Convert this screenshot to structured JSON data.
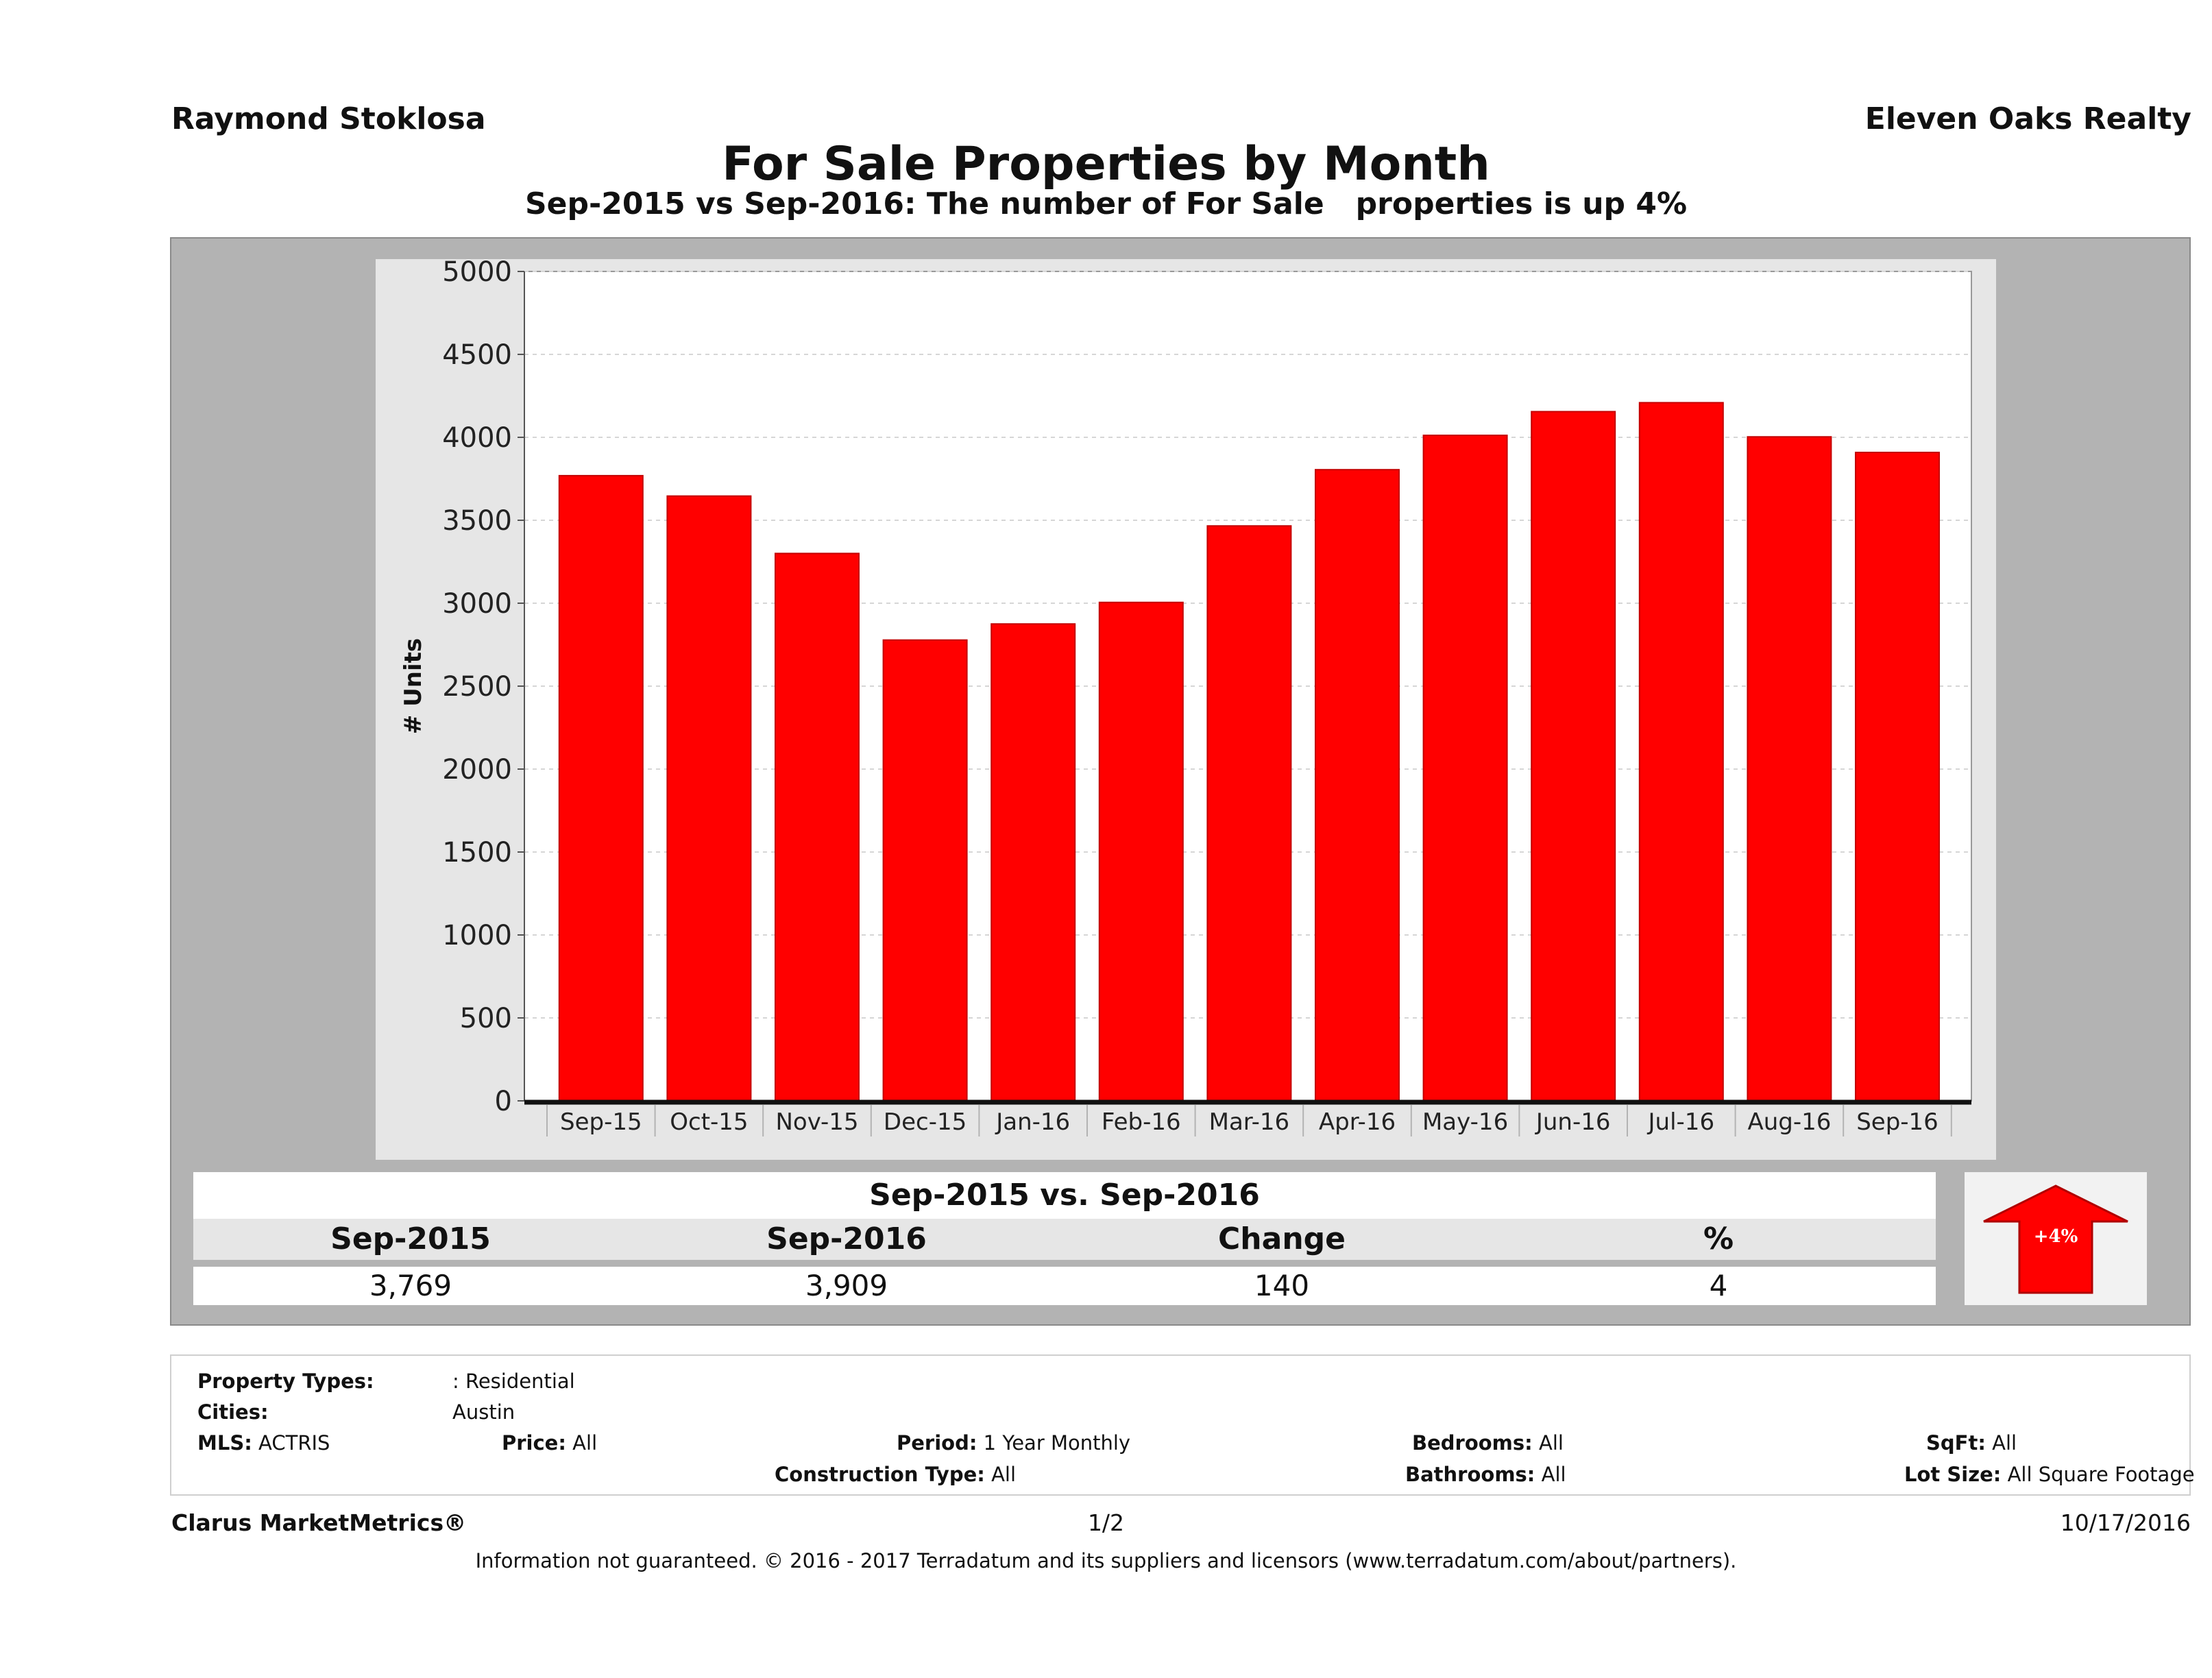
{
  "header": {
    "agent": "Raymond Stoklosa",
    "brokerage": "Eleven Oaks Realty",
    "title": "For Sale Properties by Month",
    "subtitle": "Sep-2015 vs Sep-2016: The number of For Sale   properties is up 4%"
  },
  "chart_data": {
    "type": "bar",
    "title": "For Sale Properties by Month",
    "xlabel": "",
    "ylabel": "# Units",
    "categories": [
      "Sep-15",
      "Oct-15",
      "Nov-15",
      "Dec-15",
      "Jan-16",
      "Feb-16",
      "Mar-16",
      "Apr-16",
      "May-16",
      "Jun-16",
      "Jul-16",
      "Aug-16",
      "Sep-16"
    ],
    "values": [
      3769,
      3646,
      3300,
      2778,
      2875,
      3005,
      3466,
      3805,
      4012,
      4155,
      4209,
      4003,
      3909
    ],
    "ylim": [
      0,
      5000
    ],
    "yticks": [
      0,
      500,
      1000,
      1500,
      2000,
      2500,
      3000,
      3500,
      4000,
      4500,
      5000
    ],
    "grid": true,
    "bar_color": "#ff0000",
    "bar_edge_color": "#c40000"
  },
  "summary": {
    "title": "Sep-2015 vs. Sep-2016",
    "headers": [
      "Sep-2015",
      "Sep-2016",
      "Change",
      "%"
    ],
    "values": [
      "3,769",
      "3,909",
      "140",
      "4"
    ],
    "indicator_label": "+4%",
    "indicator_direction": "up",
    "indicator_color": "#ff0000"
  },
  "filters": {
    "property_types_label": "Property Types:",
    "property_types_value": ": Residential",
    "cities_label": "Cities:",
    "cities_value": "Austin",
    "mls_label": "MLS:",
    "mls_value": "ACTRIS",
    "price_label": "Price:",
    "price_value": "All",
    "period_label": "Period:",
    "period_value": "1 Year Monthly",
    "bedrooms_label": "Bedrooms:",
    "bedrooms_value": "All",
    "sqft_label": "SqFt:",
    "sqft_value": "All",
    "construction_label": "Construction Type:",
    "construction_value": "All",
    "bathrooms_label": "Bathrooms:",
    "bathrooms_value": "All",
    "lot_label": "Lot Size:",
    "lot_value": "All Square Footage"
  },
  "footer": {
    "brand": "Clarus MarketMetrics®",
    "page": "1/2",
    "date": "10/17/2016",
    "disclaimer": "Information not guaranteed. © 2016 - 2017 Terradatum and its suppliers and licensors (www.terradatum.com/about/partners)."
  }
}
